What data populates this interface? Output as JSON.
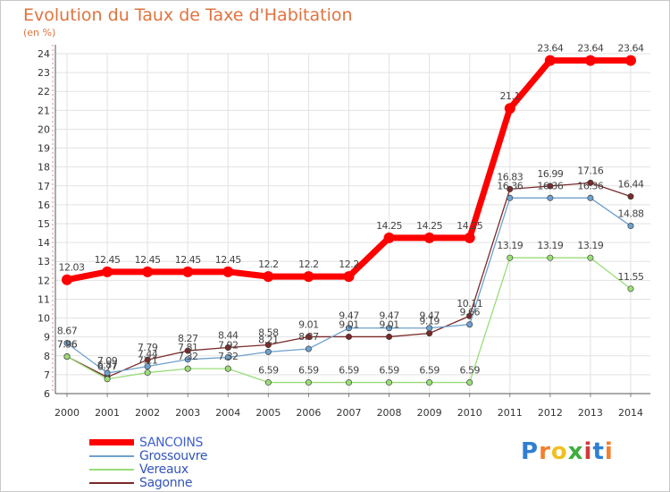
{
  "chart_data": {
    "type": "line",
    "title": "Evolution du Taux de Taxe d'Habitation",
    "subtitle": "(en %)",
    "categories": [
      "2000",
      "2001",
      "2002",
      "2003",
      "2004",
      "2005",
      "2006",
      "2007",
      "2008",
      "2009",
      "2010",
      "2011",
      "2012",
      "2013",
      "2014"
    ],
    "ylim": [
      6,
      24
    ],
    "yticks": [
      6,
      7,
      8,
      9,
      10,
      11,
      12,
      13,
      14,
      15,
      16,
      17,
      18,
      19,
      20,
      21,
      22,
      23,
      24
    ],
    "grid": true,
    "legend_position": "bottom-left",
    "series": [
      {
        "name": "SANCOINS",
        "color": "#ff0000",
        "values": [
          12.03,
          12.45,
          12.45,
          12.45,
          12.45,
          12.2,
          12.2,
          12.2,
          14.25,
          14.25,
          14.25,
          21.1,
          23.64,
          23.64,
          23.64
        ],
        "labels": [
          "12.03",
          "12.45",
          "12.45",
          "12.45",
          "12.45",
          "12.2",
          "12.2",
          "12.2",
          "14.25",
          "14.25",
          "14.25",
          "21.1",
          "23.64",
          "23.64",
          "23.64"
        ]
      },
      {
        "name": "Grossouvre",
        "color": "#6ea0cc",
        "values": [
          8.67,
          7.09,
          7.44,
          7.81,
          7.92,
          8.21,
          8.37,
          9.47,
          9.47,
          9.47,
          9.66,
          16.36,
          16.36,
          16.36,
          14.88
        ],
        "labels": [
          "8.67",
          "7.09",
          "7.44",
          "7.81",
          "7.92",
          "8.21",
          "8.37",
          "9.47",
          "9.47",
          "9.47",
          "9.66",
          "16.36",
          "16.36",
          "16.36",
          "14.88"
        ]
      },
      {
        "name": "Vereaux",
        "color": "#99dd77",
        "values": [
          7.96,
          6.77,
          7.11,
          7.32,
          7.32,
          6.59,
          6.59,
          6.59,
          6.59,
          6.59,
          6.59,
          13.19,
          13.19,
          13.19,
          11.55
        ],
        "labels": [
          "7.96",
          "6.77",
          "7.11",
          "7.32",
          "7.32",
          "6.59",
          "6.59",
          "6.59",
          "6.59",
          "6.59",
          "6.59",
          "13.19",
          "13.19",
          "13.19",
          "11.55"
        ]
      },
      {
        "name": "Sagonne",
        "color": "#7a2a2a",
        "values": [
          7.96,
          6.87,
          7.79,
          8.27,
          8.44,
          8.58,
          9.01,
          9.01,
          9.01,
          9.19,
          10.11,
          16.83,
          16.99,
          17.16,
          16.44
        ],
        "labels": [
          "7.96",
          "6.87",
          "7.79",
          "8.27",
          "8.44",
          "8.58",
          "9.01",
          "9.01",
          "9.01",
          "9.19",
          "10.11",
          "16.83",
          "16.99",
          "17.16",
          "16.44"
        ]
      }
    ]
  },
  "logo": {
    "letters": [
      "P",
      "r",
      "o",
      "x",
      "i",
      "t",
      "i"
    ],
    "colors": [
      "#2f7fd1",
      "#f08030",
      "#f0c020",
      "#3cae3c",
      "#d03a3a",
      "#2f7fd1",
      "#f08030"
    ]
  }
}
